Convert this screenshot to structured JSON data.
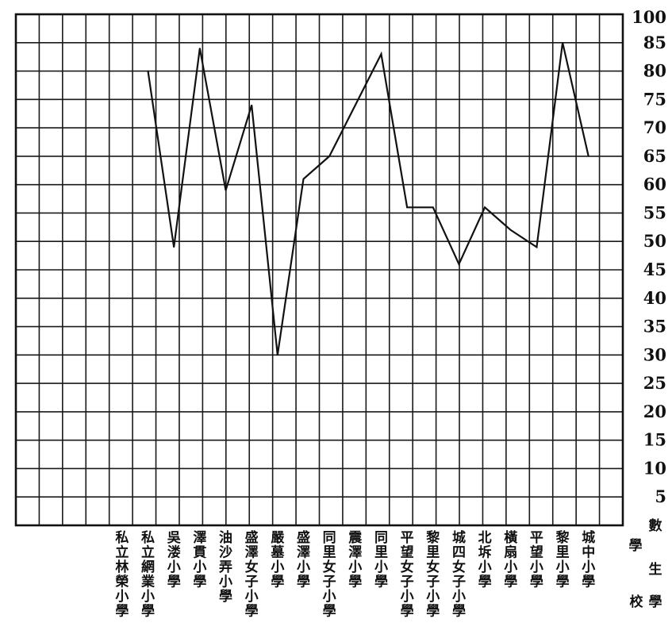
{
  "chart_data": {
    "type": "line",
    "title": "",
    "xlabel": "學校",
    "ylabel": "學生數",
    "ylabel_chars": [
      "數",
      "學",
      "生"
    ],
    "xlabel_chars": [
      "校",
      "學"
    ],
    "ylim": [
      0,
      100
    ],
    "yticks": [
      "5",
      "10",
      "15",
      "20",
      "25",
      "30",
      "35",
      "40",
      "45",
      "50",
      "55",
      "60",
      "65",
      "70",
      "75",
      "80",
      "85",
      "100"
    ],
    "grid": true,
    "categories": [
      "私立林榮小學",
      "私立網業小學",
      "吳溇小學",
      "澤貫小學",
      "油沙弄小學",
      "盛澤女子小學",
      "嚴墓小學",
      "盛澤小學",
      "同里女子小學",
      "震澤小學",
      "同里小學",
      "平望女子小學",
      "黎里女子小學",
      "城四女子小學",
      "北坼小學",
      "橫扇小學",
      "平望小學",
      "黎里小學",
      "城中小學"
    ],
    "series": [
      {
        "values": [
          null,
          80,
          49,
          84,
          59,
          74,
          30,
          61,
          65,
          74,
          83,
          56,
          56,
          46,
          56,
          52,
          49,
          85,
          65
        ]
      }
    ]
  }
}
